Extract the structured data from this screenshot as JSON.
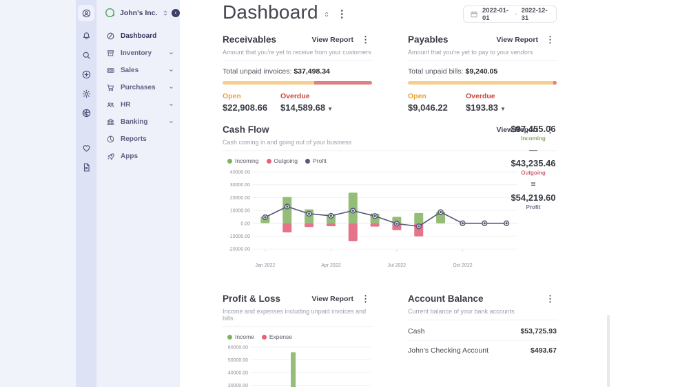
{
  "brand": {
    "company_name": "John's Inc."
  },
  "icon_rail": {
    "icons": [
      {
        "name": "account-icon",
        "active": true
      },
      {
        "name": "bell-icon"
      },
      {
        "name": "search-icon"
      },
      {
        "name": "plus-circle-icon"
      },
      {
        "name": "gear-icon"
      },
      {
        "name": "world-icon"
      },
      {
        "name": "heart-icon",
        "gap": true
      },
      {
        "name": "file-icon"
      }
    ]
  },
  "sidebar": {
    "items": [
      {
        "label": "Dashboard",
        "icon": "dashboard",
        "active": true,
        "expandable": false
      },
      {
        "label": "Inventory",
        "icon": "inventory",
        "expandable": true
      },
      {
        "label": "Sales",
        "icon": "sales",
        "expandable": true
      },
      {
        "label": "Purchases",
        "icon": "purchases",
        "expandable": true
      },
      {
        "label": "HR",
        "icon": "hr",
        "expandable": true
      },
      {
        "label": "Banking",
        "icon": "banking",
        "expandable": true
      },
      {
        "label": "Reports",
        "icon": "reports",
        "expandable": false
      },
      {
        "label": "Apps",
        "icon": "apps",
        "expandable": false
      }
    ]
  },
  "header": {
    "title": "Dashboard",
    "date_range": {
      "start": "2022-01-01",
      "separator": "-",
      "end": "2022-12-31"
    }
  },
  "receivables": {
    "title": "Receivables",
    "view_report": "View Report",
    "subtitle": "Amount that you're yet to receive from your customers",
    "total_label": "Total unpaid invoices:",
    "total_amount": "$37,498.34",
    "progress": {
      "open_pct": 61.1,
      "overdue_pct": 38.9
    },
    "open_label": "Open",
    "open_amount": "$22,908.66",
    "overdue_label": "Overdue",
    "overdue_amount": "$14,589.68"
  },
  "payables": {
    "title": "Payables",
    "view_report": "View Report",
    "subtitle": "Amount that you're yet to pay to your vendors",
    "total_label": "Total unpaid bills:",
    "total_amount": "$9,240.05",
    "progress": {
      "open_pct": 97.9,
      "overdue_pct": 2.1
    },
    "open_label": "Open",
    "open_amount": "$9,046.22",
    "overdue_label": "Overdue",
    "overdue_amount": "$193.83"
  },
  "cashflow": {
    "title": "Cash Flow",
    "view_report": "View Report",
    "subtitle": "Cash coming in and going out of your business",
    "legend": [
      {
        "label": "Incoming",
        "color": "#7db35e"
      },
      {
        "label": "Outgoing",
        "color": "#e8607a"
      },
      {
        "label": "Profit",
        "color": "#555a7c"
      }
    ],
    "summary": {
      "incoming_amount": "$97,455.06",
      "incoming_label": "Incoming",
      "minus": "—",
      "outgoing_amount": "$43,235.46",
      "outgoing_label": "Outgoing",
      "equals": "=",
      "profit_amount": "$54,219.60",
      "profit_label": "Profit"
    }
  },
  "profit_loss": {
    "title": "Profit & Loss",
    "view_report": "View Report",
    "subtitle": "Income and expenses including unpaid invoices and bills",
    "legend": [
      {
        "label": "Income",
        "color": "#7db35e"
      },
      {
        "label": "Expense",
        "color": "#e8607a"
      }
    ]
  },
  "account_balance": {
    "title": "Account Balance",
    "subtitle": "Current balance of your bank accounts",
    "rows": [
      {
        "name": "Cash",
        "amount": "$53,725.93"
      },
      {
        "name": "John's Checking Account",
        "amount": "$493.67"
      }
    ]
  },
  "chart_data": [
    {
      "type": "bar+line",
      "title": "Cash Flow",
      "x": [
        "Jan 2022",
        "Feb 2022",
        "Mar 2022",
        "Apr 2022",
        "May 2022",
        "Jun 2022",
        "Jul 2022",
        "Aug 2022",
        "Sep 2022",
        "Oct 2022",
        "Nov 2022",
        "Dec 2022"
      ],
      "x_tick_labels": [
        "Jan 2022",
        "Apr 2022",
        "Jul 2022",
        "Oct 2022"
      ],
      "y_ticks": [
        40000,
        30000,
        20000,
        10000,
        0,
        -10000,
        -20000
      ],
      "ylim": [
        -20000,
        40000
      ],
      "grid": true,
      "legend_position": "top-left",
      "series": [
        {
          "name": "Incoming",
          "type": "bar",
          "color": "#94bd77",
          "values": [
            5300,
            20400,
            10800,
            7000,
            23800,
            7500,
            5000,
            8000,
            9000,
            0,
            0,
            0
          ]
        },
        {
          "name": "Outgoing",
          "type": "bar",
          "color": "#e57489",
          "values": [
            0,
            -7100,
            -2900,
            -2300,
            -14000,
            -2600,
            -5400,
            -10300,
            -200,
            0,
            0,
            0
          ]
        },
        {
          "name": "Profit",
          "type": "line",
          "color": "#535775",
          "values": [
            4700,
            13000,
            7400,
            5800,
            9800,
            5600,
            -300,
            -2400,
            8700,
            0,
            0,
            0
          ]
        }
      ],
      "totals": {
        "incoming": 97455.06,
        "outgoing": 43235.46,
        "profit": 54219.6
      }
    },
    {
      "type": "bar",
      "title": "Profit & Loss",
      "note": "chart partially cut off at bottom edge of screenshot",
      "y_ticks_visible": [
        60000,
        50000,
        40000,
        30000
      ],
      "grid": true,
      "series": [
        {
          "name": "Income",
          "color": "#94bd77",
          "visible_bars": [
            {
              "x_fraction": 0.35,
              "value": 56000
            }
          ]
        },
        {
          "name": "Expense",
          "color": "#e57489",
          "visible_bars": []
        }
      ]
    }
  ]
}
